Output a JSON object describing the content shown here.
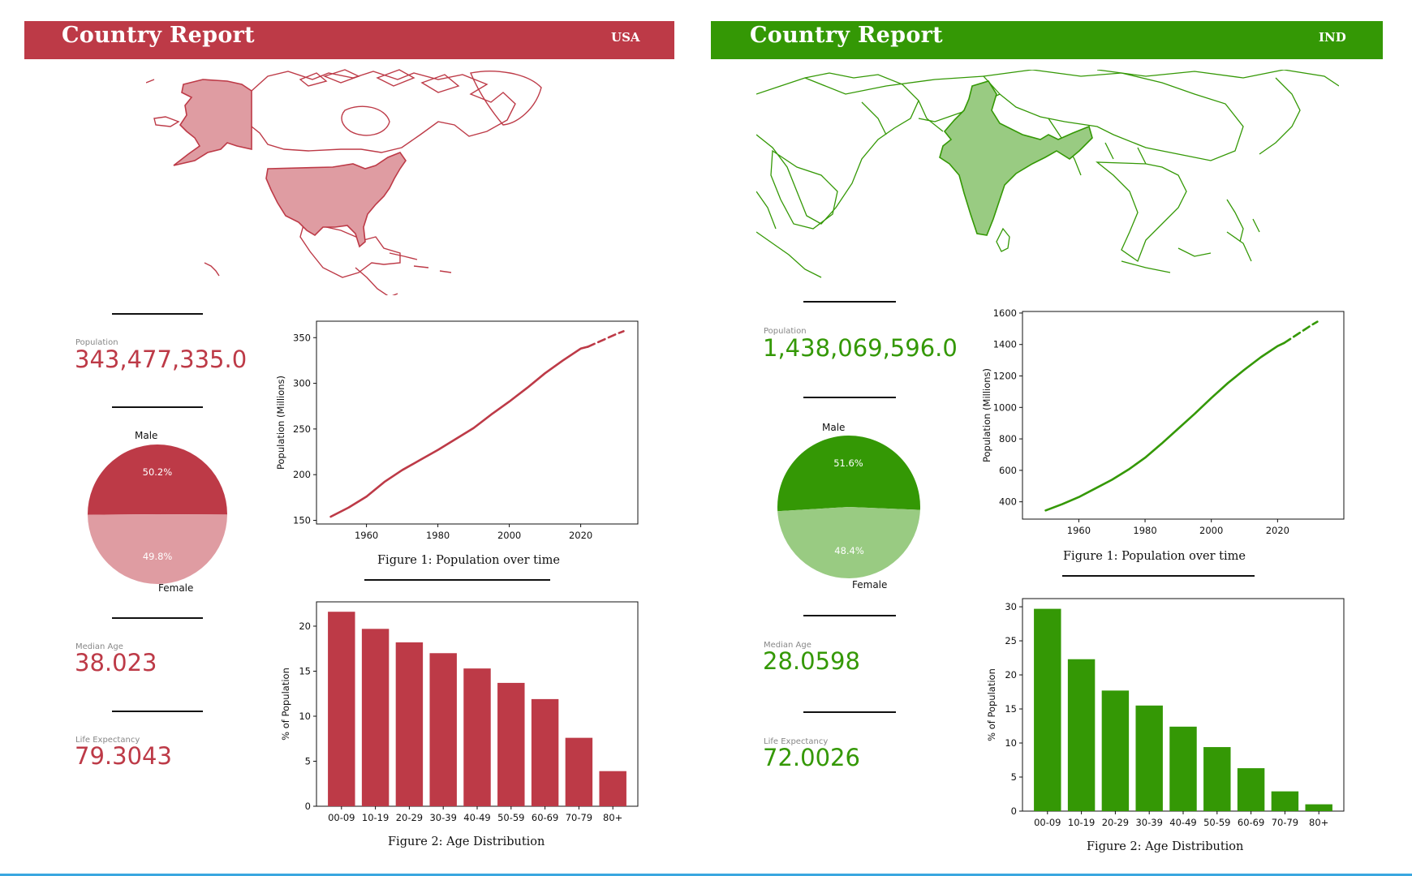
{
  "reports": [
    {
      "id": "usa",
      "header": {
        "title": "Country Report",
        "code": "USA"
      },
      "colors": {
        "accent": "#bd3a47",
        "light": "#df9ca2"
      },
      "population": {
        "label": "Population",
        "value": "343,477,335.0"
      },
      "median_age": {
        "label": "Median Age",
        "value": "38.023"
      },
      "life_expectancy": {
        "label": "Life Expectancy",
        "value": "79.3043"
      },
      "captions": {
        "population": "Figure 1:  Population over time",
        "age": "Figure 2:  Age Distribution"
      }
    },
    {
      "id": "ind",
      "header": {
        "title": "Country Report",
        "code": "IND"
      },
      "colors": {
        "accent": "#349805",
        "light": "#99cb82"
      },
      "population": {
        "label": "Population",
        "value": "1,438,069,596.0"
      },
      "median_age": {
        "label": "Median Age",
        "value": "28.0598"
      },
      "life_expectancy": {
        "label": "Life Expectancy",
        "value": "72.0026"
      },
      "captions": {
        "population": "Figure 1:  Population over time",
        "age": "Figure 2:  Age Distribution"
      }
    }
  ],
  "chart_data": [
    {
      "id": "usa-gender",
      "type": "pie",
      "labels": [
        "Male",
        "Female"
      ],
      "values": [
        50.2,
        49.8
      ],
      "value_labels": [
        "50.2%",
        "49.8%"
      ],
      "colors": [
        "#bd3a47",
        "#df9ca2"
      ]
    },
    {
      "id": "usa-population",
      "type": "line",
      "title": "",
      "xlabel": "",
      "ylabel": "Population (Millions)",
      "xlim": [
        1946,
        2036
      ],
      "ylim": [
        146,
        368
      ],
      "xticks": [
        1960,
        1980,
        2000,
        2020
      ],
      "yticks": [
        150,
        200,
        250,
        300,
        350
      ],
      "series": [
        {
          "style": "solid",
          "x": [
            1950,
            1955,
            1960,
            1965,
            1970,
            1975,
            1980,
            1985,
            1990,
            1995,
            2000,
            2005,
            2010,
            2015,
            2020,
            2022
          ],
          "y": [
            154,
            164,
            176,
            192,
            205,
            216,
            227,
            239,
            251,
            266,
            280,
            295,
            311,
            325,
            338,
            340
          ]
        },
        {
          "style": "dashed",
          "x": [
            2022,
            2026,
            2030,
            2032
          ],
          "y": [
            340,
            347,
            354,
            357
          ]
        }
      ],
      "color": "#bd3a47"
    },
    {
      "id": "usa-age",
      "type": "bar",
      "title": "",
      "xlabel": "",
      "ylabel": "% of Population",
      "categories": [
        "00-09",
        "10-19",
        "20-29",
        "30-39",
        "40-49",
        "50-59",
        "60-69",
        "70-79",
        "80+"
      ],
      "values": [
        21.6,
        19.7,
        18.2,
        17.0,
        15.3,
        13.7,
        11.9,
        7.6,
        3.9
      ],
      "ylim": [
        0,
        22.7
      ],
      "yticks": [
        0,
        5,
        10,
        15,
        20
      ],
      "color": "#bd3a47"
    },
    {
      "id": "ind-gender",
      "type": "pie",
      "labels": [
        "Male",
        "Female"
      ],
      "values": [
        51.6,
        48.4
      ],
      "value_labels": [
        "51.6%",
        "48.4%"
      ],
      "colors": [
        "#349805",
        "#99cb82"
      ]
    },
    {
      "id": "ind-population",
      "type": "line",
      "title": "",
      "xlabel": "",
      "ylabel": "Population (Millions)",
      "xlim": [
        1943,
        2040
      ],
      "ylim": [
        290,
        1610
      ],
      "xticks": [
        1960,
        1980,
        2000,
        2020
      ],
      "yticks": [
        400,
        600,
        800,
        1000,
        1200,
        1400,
        1600
      ],
      "series": [
        {
          "style": "solid",
          "x": [
            1950,
            1955,
            1960,
            1965,
            1970,
            1975,
            1980,
            1985,
            1990,
            1995,
            2000,
            2005,
            2010,
            2015,
            2020,
            2022
          ],
          "y": [
            345,
            385,
            430,
            485,
            540,
            605,
            680,
            770,
            865,
            960,
            1060,
            1155,
            1240,
            1320,
            1390,
            1410
          ]
        },
        {
          "style": "dashed",
          "x": [
            2022,
            2026,
            2030,
            2032
          ],
          "y": [
            1410,
            1465,
            1520,
            1545
          ]
        }
      ],
      "color": "#349805"
    },
    {
      "id": "ind-age",
      "type": "bar",
      "title": "",
      "xlabel": "",
      "ylabel": "% of Population",
      "categories": [
        "00-09",
        "10-19",
        "20-29",
        "30-39",
        "40-49",
        "50-59",
        "60-69",
        "70-79",
        "80+"
      ],
      "values": [
        29.7,
        22.3,
        17.7,
        15.5,
        12.4,
        9.4,
        6.3,
        2.9,
        1.0
      ],
      "ylim": [
        0,
        31.2
      ],
      "yticks": [
        0,
        5,
        10,
        15,
        20,
        25,
        30
      ],
      "color": "#349805"
    }
  ]
}
